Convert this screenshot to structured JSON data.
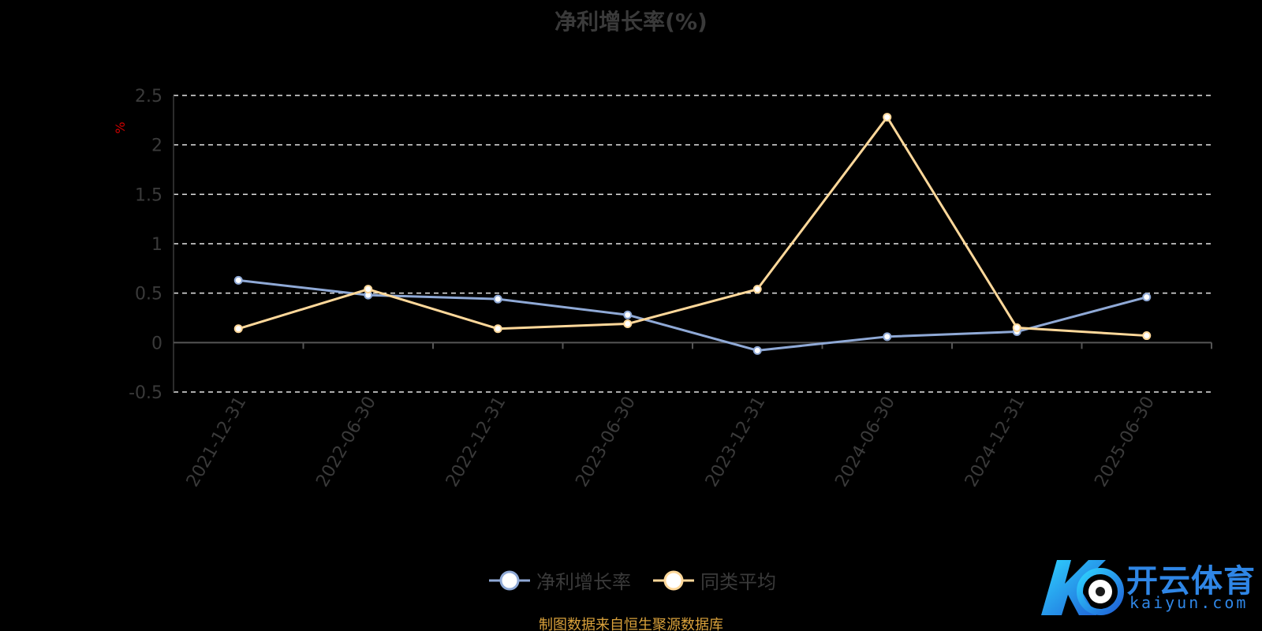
{
  "chart_data": {
    "type": "line",
    "title": "净利增长率(%)",
    "ylabel": "%",
    "xlabel": "",
    "categories": [
      "2021-12-31",
      "2022-06-30",
      "2022-12-31",
      "2023-06-30",
      "2023-12-31",
      "2024-06-30",
      "2024-12-31",
      "2025-06-30"
    ],
    "ylim": [
      -0.5,
      2.5
    ],
    "yticks": [
      "2.5",
      "2",
      "1.5",
      "1",
      "0.5",
      "0",
      "-0.5"
    ],
    "ytick_values": [
      2.5,
      2,
      1.5,
      1,
      0.5,
      0,
      -0.5
    ],
    "grid": true,
    "legend_position": "bottom-center",
    "series": [
      {
        "name": "净利增长率",
        "color": "#8fa9d6",
        "values": [
          0.63,
          0.48,
          0.44,
          0.28,
          -0.08,
          0.06,
          0.11,
          0.46
        ]
      },
      {
        "name": "同类平均",
        "color": "#ffd89a",
        "values": [
          0.14,
          0.54,
          0.14,
          0.19,
          0.54,
          2.28,
          0.15,
          0.07
        ]
      }
    ]
  },
  "footer": {
    "source": "制图数据来自恒生聚源数据库"
  },
  "watermark": {
    "text": "开云体育",
    "sub": "kaiyun.com"
  }
}
